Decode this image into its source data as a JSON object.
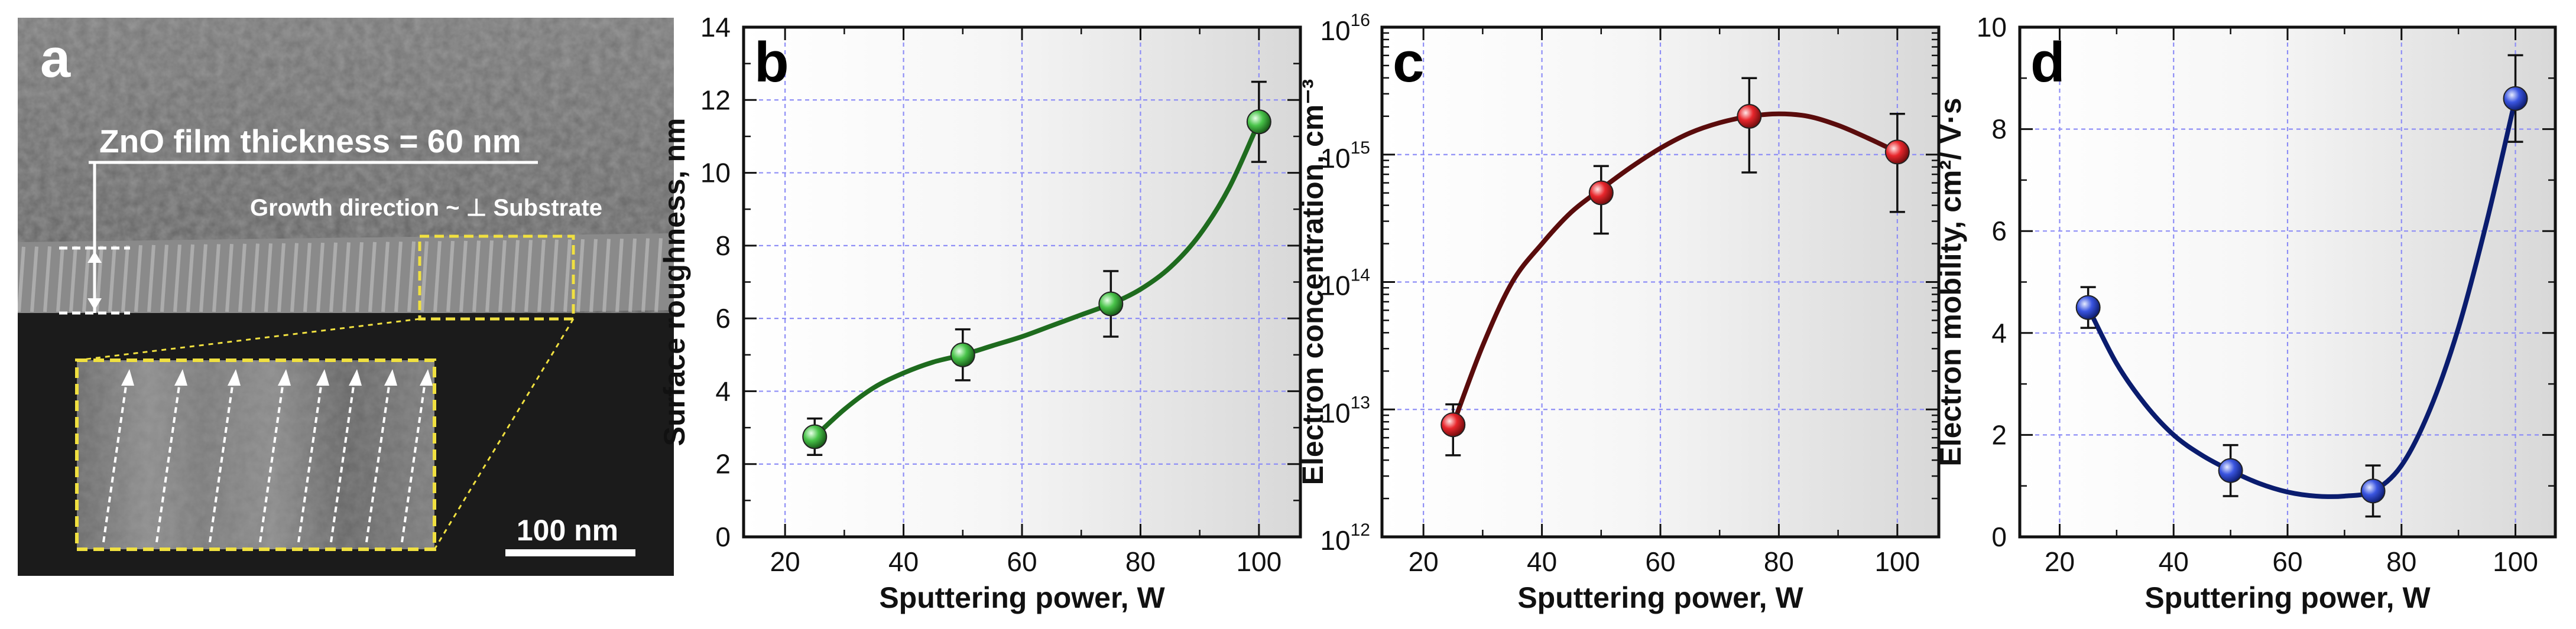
{
  "colors": {
    "green": "#1e6b1e",
    "green_marker": "#49c44a",
    "red": "#5a0c0c",
    "red_marker": "#e8262c",
    "blue": "#0a1c6e",
    "blue_marker": "#3a55e0",
    "grid": "#8e8ef6"
  },
  "sem_panel": {
    "letter": "a",
    "thickness_label": "ZnO film thickness = 60 nm",
    "growth_label": "Growth direction ~ ⊥ Substrate",
    "scale_bar": "100 nm"
  },
  "chart_data": [
    {
      "id": "b",
      "panel_letter": "b",
      "type": "scatter",
      "xlabel": "Sputtering power, W",
      "ylabel": "Surface roughness, nm",
      "xlim": [
        13,
        107
      ],
      "ylim": [
        0,
        14
      ],
      "yscale": "linear",
      "xticks": [
        20,
        40,
        60,
        80,
        100
      ],
      "yticks": [
        0,
        2,
        4,
        6,
        8,
        10,
        12,
        14
      ],
      "x": [
        25,
        50,
        75,
        100
      ],
      "y": [
        2.75,
        5.0,
        6.4,
        11.4
      ],
      "err_low": [
        0.5,
        0.7,
        0.9,
        1.1
      ],
      "err_high": [
        0.5,
        0.7,
        0.9,
        1.1
      ],
      "fit_curve": [
        [
          25,
          2.75
        ],
        [
          30,
          3.5
        ],
        [
          35,
          4.1
        ],
        [
          40,
          4.5
        ],
        [
          45,
          4.8
        ],
        [
          50,
          5.0
        ],
        [
          55,
          5.25
        ],
        [
          60,
          5.5
        ],
        [
          65,
          5.8
        ],
        [
          70,
          6.1
        ],
        [
          75,
          6.4
        ],
        [
          80,
          6.8
        ],
        [
          85,
          7.4
        ],
        [
          90,
          8.3
        ],
        [
          95,
          9.6
        ],
        [
          100,
          11.4
        ]
      ]
    },
    {
      "id": "c",
      "panel_letter": "c",
      "type": "scatter",
      "xlabel": "Sputtering power, W",
      "ylabel": "Electron concentration, cm⁻³",
      "xlim": [
        13,
        107
      ],
      "ylim_exp": [
        12,
        16
      ],
      "yscale": "log",
      "xticks": [
        20,
        40,
        60,
        80,
        100
      ],
      "ytick_base": "10",
      "ytick_exps": [
        "12",
        "13",
        "14",
        "15",
        "16"
      ],
      "x": [
        25,
        50,
        75,
        100
      ],
      "log10_y": [
        12.88,
        14.7,
        15.3,
        15.02
      ],
      "err_low_log": [
        0.24,
        0.32,
        0.44,
        0.47
      ],
      "err_high_log": [
        0.16,
        0.21,
        0.3,
        0.3
      ],
      "fit_curve_log": [
        [
          25,
          12.88
        ],
        [
          30,
          13.5
        ],
        [
          35,
          14.0
        ],
        [
          40,
          14.3
        ],
        [
          45,
          14.55
        ],
        [
          50,
          14.73
        ],
        [
          55,
          14.9
        ],
        [
          60,
          15.05
        ],
        [
          65,
          15.17
        ],
        [
          70,
          15.25
        ],
        [
          75,
          15.3
        ],
        [
          80,
          15.32
        ],
        [
          85,
          15.3
        ],
        [
          90,
          15.23
        ],
        [
          95,
          15.13
        ],
        [
          100,
          15.02
        ]
      ]
    },
    {
      "id": "d",
      "panel_letter": "d",
      "type": "scatter",
      "xlabel": "Sputtering power, W",
      "ylabel": "Electron mobility,  cm²/ V·s",
      "xlim": [
        13,
        107
      ],
      "ylim": [
        0,
        10
      ],
      "yscale": "linear",
      "xticks": [
        20,
        40,
        60,
        80,
        100
      ],
      "yticks": [
        0,
        2,
        4,
        6,
        8,
        10
      ],
      "x": [
        25,
        50,
        75,
        100
      ],
      "y": [
        4.5,
        1.3,
        0.9,
        8.6
      ],
      "err_low": [
        0.4,
        0.5,
        0.5,
        0.85
      ],
      "err_high": [
        0.4,
        0.5,
        0.5,
        0.85
      ],
      "fit_curve": [
        [
          25,
          4.5
        ],
        [
          30,
          3.4
        ],
        [
          35,
          2.6
        ],
        [
          40,
          2.0
        ],
        [
          45,
          1.6
        ],
        [
          50,
          1.3
        ],
        [
          55,
          1.05
        ],
        [
          60,
          0.88
        ],
        [
          65,
          0.8
        ],
        [
          70,
          0.8
        ],
        [
          75,
          0.9
        ],
        [
          80,
          1.4
        ],
        [
          85,
          2.5
        ],
        [
          90,
          4.1
        ],
        [
          95,
          6.2
        ],
        [
          100,
          8.6
        ]
      ]
    }
  ]
}
